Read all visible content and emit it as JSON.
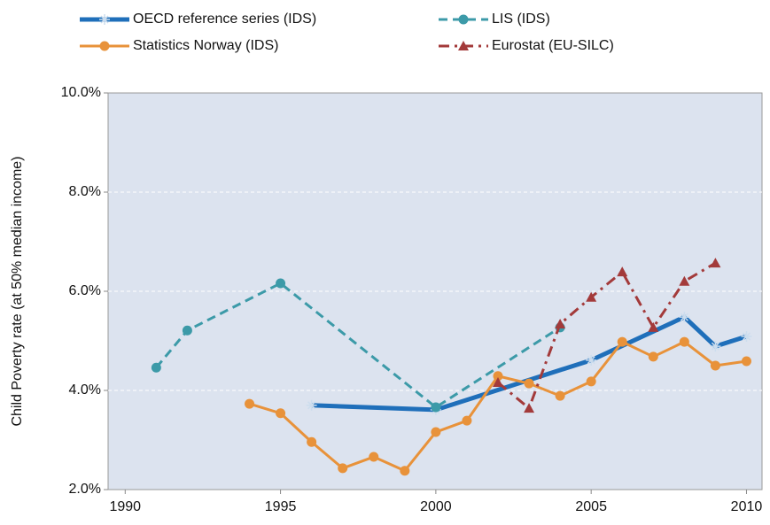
{
  "chart_data": {
    "type": "line",
    "ylabel": "Child Poverty rate (at 50% median income)",
    "xlim": [
      1989.45,
      2010.5
    ],
    "xticks": [
      1990,
      1995,
      2000,
      2005,
      2010
    ],
    "ylim": [
      2,
      10
    ],
    "yticks": [
      {
        "value": 2,
        "label": "2.0%"
      },
      {
        "value": 4,
        "label": "4.0%"
      },
      {
        "value": 6,
        "label": "6.0%"
      },
      {
        "value": 8,
        "label": "8.0%"
      },
      {
        "value": 10,
        "label": "10.0%"
      }
    ],
    "grid": true,
    "series": [
      {
        "name": "OECD reference series (IDS)",
        "color": "#1f6fba",
        "marker": "star",
        "dash": "solid",
        "width": 5,
        "x": [
          1996,
          2000,
          2005,
          2008,
          2009,
          2010
        ],
        "values": [
          3.7,
          3.61,
          4.61,
          5.48,
          4.89,
          5.09
        ]
      },
      {
        "name": "LIS (IDS)",
        "color": "#3c9aa8",
        "marker": "circle",
        "dash": "dashed",
        "width": 3,
        "x": [
          1991,
          1992,
          1995,
          2000,
          2004
        ],
        "values": [
          4.46,
          5.21,
          6.16,
          3.66,
          5.27
        ]
      },
      {
        "name": "Statistics Norway (IDS)",
        "color": "#e8923a",
        "marker": "circle",
        "dash": "solid",
        "width": 3,
        "x": [
          1994,
          1995,
          1996,
          1997,
          1998,
          1999,
          2000,
          2001,
          2002,
          2003,
          2004,
          2005,
          2006,
          2007,
          2008,
          2009,
          2010
        ],
        "values": [
          3.73,
          3.54,
          2.96,
          2.43,
          2.66,
          2.38,
          3.16,
          3.39,
          4.29,
          4.14,
          3.89,
          4.18,
          4.98,
          4.68,
          4.98,
          4.5,
          4.59
        ]
      },
      {
        "name": "Eurostat (EU-SILC)",
        "color": "#a33a3a",
        "marker": "triangle",
        "dash": "dashdot",
        "width": 3,
        "x": [
          2002,
          2003,
          2004,
          2005,
          2006,
          2007,
          2008,
          2009
        ],
        "values": [
          4.16,
          3.64,
          5.34,
          5.88,
          6.39,
          5.27,
          6.2,
          6.57
        ]
      }
    ]
  }
}
